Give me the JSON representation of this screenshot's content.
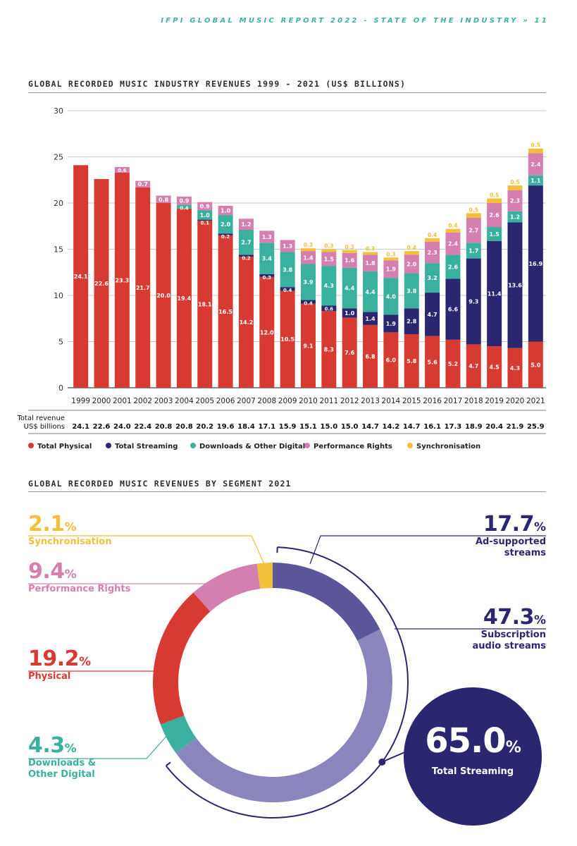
{
  "header": {
    "text": "IFPI GLOBAL MUSIC REPORT 2022 - STATE OF THE INDUSTRY",
    "arrow": "»",
    "page_number": "11"
  },
  "section1_title": "GLOBAL RECORDED MUSIC INDUSTRY REVENUES 1999 - 2021 (US$ BILLIONS)",
  "section2_title": "GLOBAL RECORDED MUSIC REVENUES BY SEGMENT 2021",
  "colors": {
    "physical": "#d63a30",
    "streaming": "#2a2670",
    "downloads": "#3ab09e",
    "performance": "#d57fb0",
    "sync": "#f2c03a",
    "ad_supported": "#5a5699",
    "subscription": "#8b85bd"
  },
  "chart_data": [
    {
      "type": "bar",
      "stacked": true,
      "title": "GLOBAL RECORDED MUSIC INDUSTRY REVENUES 1999 - 2021 (US$ BILLIONS)",
      "ylim": [
        0,
        30
      ],
      "yticks": [
        "0",
        "5",
        "10",
        "15",
        "20",
        "25",
        "30"
      ],
      "grid": true,
      "legend_position": "bottom",
      "categories": [
        "1999",
        "2000",
        "2001",
        "2002",
        "2003",
        "2004",
        "2005",
        "2006",
        "2007",
        "2008",
        "2009",
        "2010",
        "2011",
        "2012",
        "2013",
        "2014",
        "2015",
        "2016",
        "2017",
        "2018",
        "2019",
        "2020",
        "2021"
      ],
      "series": [
        {
          "name": "Total Physical",
          "key": "physical",
          "values": [
            24.1,
            22.6,
            23.3,
            21.7,
            20.0,
            19.4,
            18.1,
            16.5,
            14.2,
            12.0,
            10.5,
            9.1,
            8.3,
            7.6,
            6.8,
            6.0,
            5.8,
            5.6,
            5.2,
            4.7,
            4.5,
            4.3,
            5.0
          ]
        },
        {
          "name": "Total Streaming",
          "key": "streaming",
          "values": [
            null,
            null,
            null,
            null,
            null,
            null,
            0.1,
            0.2,
            0.2,
            0.3,
            0.4,
            0.4,
            0.6,
            1.0,
            1.4,
            1.9,
            2.8,
            4.7,
            6.6,
            9.3,
            11.4,
            13.6,
            16.9
          ]
        },
        {
          "name": "Downloads & Other Digital",
          "key": "downloads",
          "values": [
            null,
            null,
            null,
            null,
            null,
            0.4,
            1.0,
            2.0,
            2.7,
            3.4,
            3.8,
            3.9,
            4.3,
            4.4,
            4.4,
            4.0,
            3.8,
            3.2,
            2.6,
            1.7,
            1.5,
            1.2,
            1.1
          ]
        },
        {
          "name": "Performance Rights",
          "key": "performance",
          "values": [
            null,
            null,
            0.6,
            0.7,
            0.8,
            0.9,
            0.9,
            1.0,
            1.2,
            1.3,
            1.3,
            1.4,
            1.5,
            1.6,
            1.8,
            1.9,
            2.0,
            2.3,
            2.4,
            2.7,
            2.6,
            2.3,
            2.4
          ]
        },
        {
          "name": "Synchronisation",
          "key": "sync",
          "values": [
            null,
            null,
            null,
            null,
            null,
            null,
            null,
            null,
            null,
            null,
            null,
            0.3,
            0.3,
            0.3,
            0.3,
            0.3,
            0.4,
            0.4,
            0.4,
            0.5,
            0.5,
            0.5,
            0.5
          ]
        }
      ],
      "totals_label": [
        "Total revenue",
        "US$ billions"
      ],
      "totals": [
        "24.1",
        "22.6",
        "24.0",
        "22.4",
        "20.8",
        "20.8",
        "20.2",
        "19.6",
        "18.4",
        "17.1",
        "15.9",
        "15.1",
        "15.0",
        "15.0",
        "14.7",
        "14.2",
        "14.7",
        "16.1",
        "17.3",
        "18.9",
        "20.4",
        "21.9",
        "25.9"
      ]
    },
    {
      "type": "pie",
      "donut": true,
      "title": "GLOBAL RECORDED MUSIC REVENUES BY SEGMENT 2021",
      "slices": [
        {
          "key": "ad",
          "value": 17.7,
          "label": "Ad-supported streams",
          "label_lines": [
            "Ad-supported",
            "streams"
          ],
          "color": "#5a5699"
        },
        {
          "key": "sub",
          "value": 47.3,
          "label": "Subscription audio streams",
          "label_lines": [
            "Subscription",
            "audio streams"
          ],
          "color": "#8b85bd"
        },
        {
          "key": "dl",
          "value": 4.3,
          "label": "Downloads & Other Digital",
          "label_lines": [
            "Downloads &",
            "Other Digital"
          ],
          "color": "#3ab09e"
        },
        {
          "key": "phys",
          "value": 19.2,
          "label": "Physical",
          "label_lines": [
            "Physical"
          ],
          "color": "#d63a30"
        },
        {
          "key": "perf",
          "value": 9.4,
          "label": "Performance Rights",
          "label_lines": [
            "Performance Rights"
          ],
          "color": "#d57fb0"
        },
        {
          "key": "sync",
          "value": 2.1,
          "label": "Synchronisation",
          "label_lines": [
            "Synchronisation"
          ],
          "color": "#f2c03a"
        }
      ],
      "total_streaming": {
        "value": "65.0",
        "label": "Total Streaming"
      },
      "value_labels": {
        "sync": "2.1",
        "perf": "9.4",
        "phys": "19.2",
        "dl": "4.3",
        "ad": "17.7",
        "sub": "47.3"
      },
      "percent_sign": "%"
    }
  ]
}
